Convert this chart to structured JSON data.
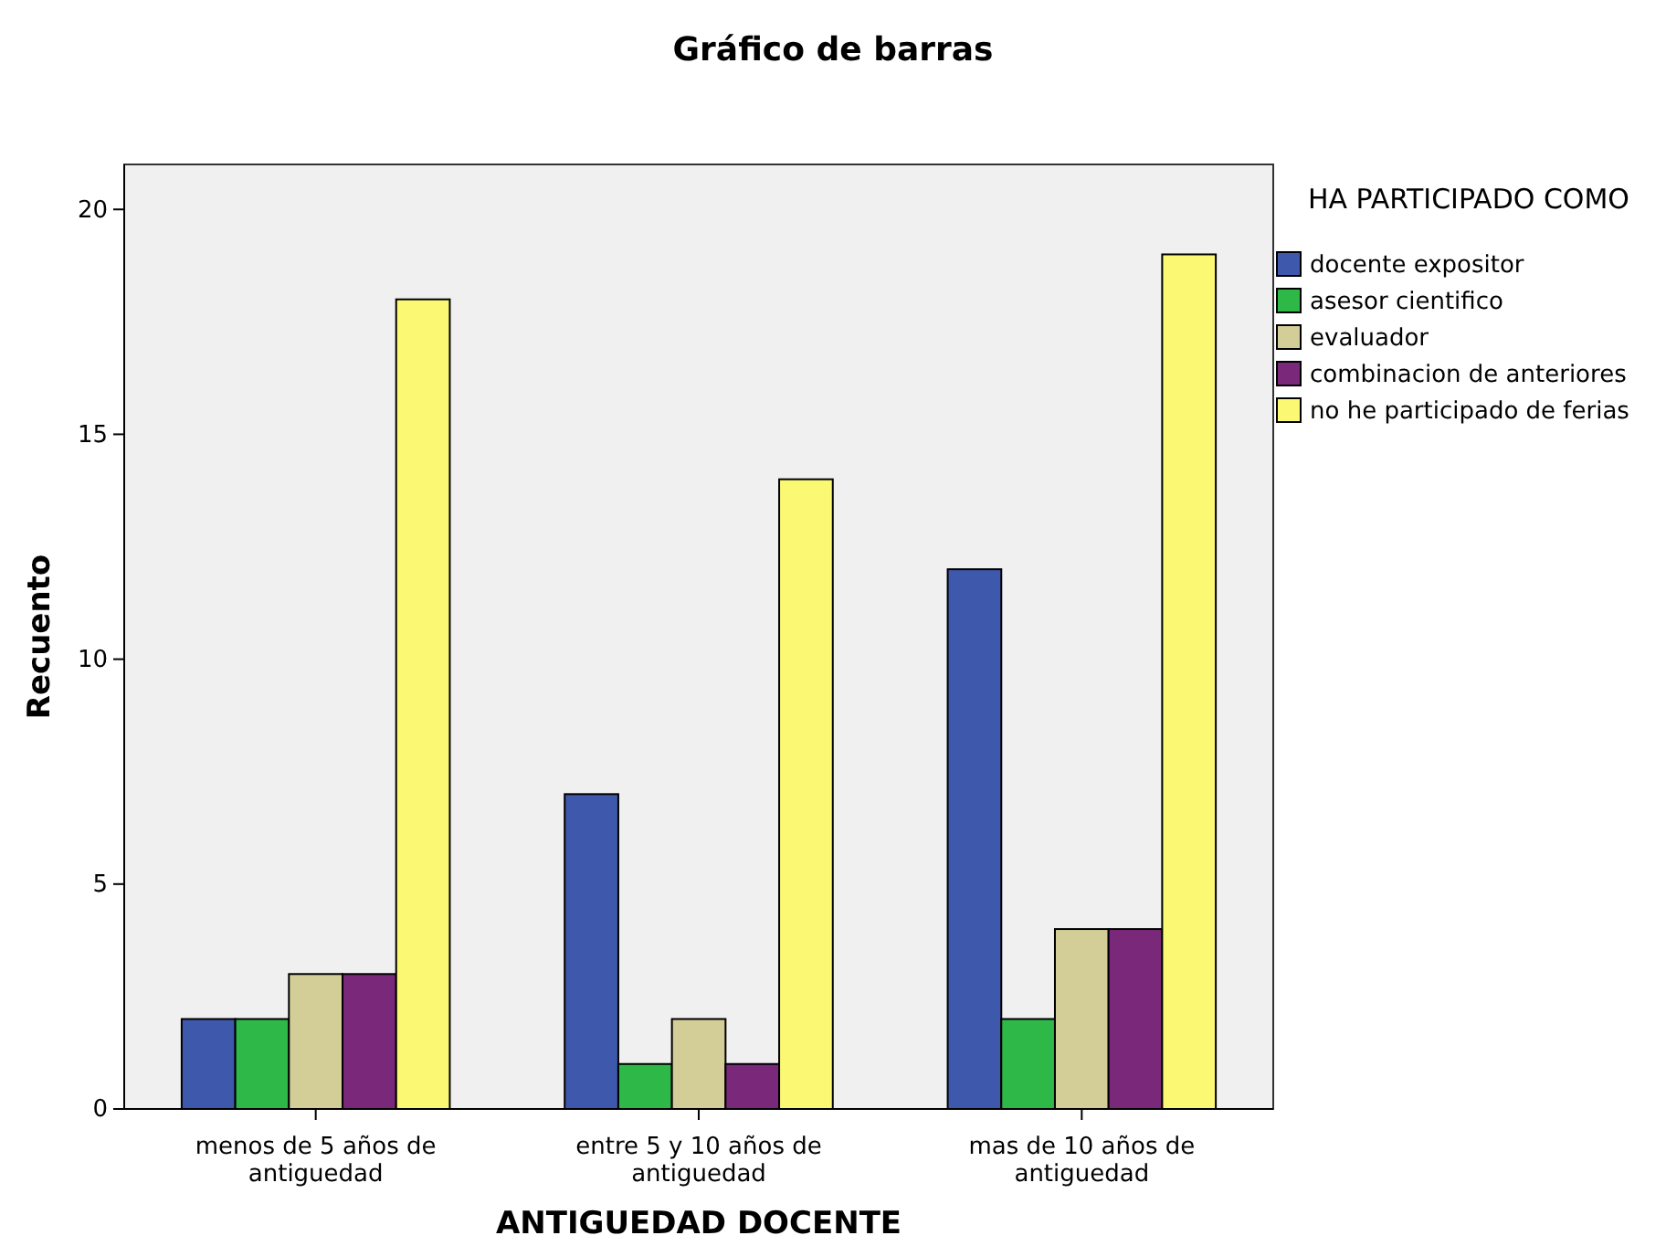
{
  "chart_data": {
    "type": "bar",
    "title": "Gráfico de barras",
    "xlabel": "ANTIGUEDAD DOCENTE",
    "ylabel": "Recuento",
    "legend_title": "HA PARTICIPADO COMO",
    "legend": "right",
    "grid": false,
    "categories": [
      "menos de 5 años de antiguedad",
      "entre 5 y 10 años de antiguedad",
      "mas de 10 años de antiguedad"
    ],
    "ylim": [
      0,
      21
    ],
    "yticks": [
      0,
      5,
      10,
      15,
      20
    ],
    "series": [
      {
        "name": "docente expositor",
        "color": "#3e58ac",
        "values": [
          2,
          7,
          12
        ]
      },
      {
        "name": "asesor cientifico",
        "color": "#2eb848",
        "values": [
          2,
          1,
          2
        ]
      },
      {
        "name": "evaluador",
        "color": "#d3ce97",
        "values": [
          3,
          2,
          4
        ]
      },
      {
        "name": "combinacion de anteriores",
        "color": "#79287a",
        "values": [
          3,
          1,
          4
        ]
      },
      {
        "name": "no he participado de ferias",
        "color": "#fbf873",
        "values": [
          18,
          14,
          19
        ]
      }
    ]
  }
}
